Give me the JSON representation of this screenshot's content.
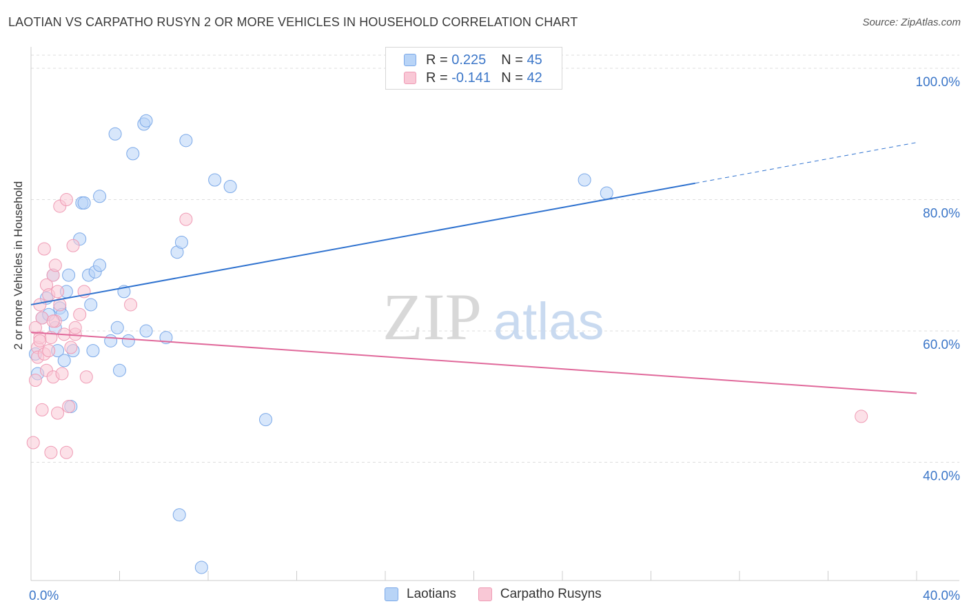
{
  "title": "LAOTIAN VS CARPATHO RUSYN 2 OR MORE VEHICLES IN HOUSEHOLD CORRELATION CHART",
  "source": "Source: ZipAtlas.com",
  "watermark": {
    "zip": "ZIP",
    "atlas": "atlas"
  },
  "legend": {
    "r_label": "R =",
    "n_label": "N =",
    "rows": [
      {
        "series": "Laotians",
        "r": "0.225",
        "n": "45"
      },
      {
        "series": "Carpatho Rusyns",
        "r": "-0.141",
        "n": "42"
      }
    ]
  },
  "bottom_legend": [
    "Laotians",
    "Carpatho Rusyns"
  ],
  "colors": {
    "laotians_fill": "#b8d4f7",
    "laotians_stroke": "#7aa8e8",
    "laotians_line": "#2f72cf",
    "rusyn_fill": "#f9c8d6",
    "rusyn_stroke": "#ef9ab4",
    "rusyn_line": "#e0689a",
    "tick_label": "#3b76c8",
    "grid": "#dddddd"
  },
  "chart_data": {
    "type": "scatter",
    "title": "LAOTIAN VS CARPATHO RUSYN 2 OR MORE VEHICLES IN HOUSEHOLD CORRELATION CHART",
    "xlabel": "",
    "ylabel": "2 or more Vehicles in Household",
    "xlim": [
      0,
      40
    ],
    "ylim": [
      22,
      102
    ],
    "x_tick_labels": [
      {
        "value": 0,
        "label": "0.0%"
      },
      {
        "value": 40,
        "label": "40.0%"
      }
    ],
    "x_minor_ticks": [
      4,
      8,
      12,
      16,
      20,
      24,
      28,
      32,
      36,
      40
    ],
    "y_ticks": [
      {
        "value": 40,
        "label": "40.0%"
      },
      {
        "value": 60,
        "label": "60.0%"
      },
      {
        "value": 80,
        "label": "80.0%"
      },
      {
        "value": 100,
        "label": "100.0%"
      }
    ],
    "grid": true,
    "series": [
      {
        "name": "Laotians",
        "r": 0.225,
        "n": 45,
        "trend": {
          "x0": 0,
          "y0": 64.0,
          "x1": 30,
          "y1": 82.5,
          "dash_to_x": 40,
          "dash_to_y": 88.7
        },
        "points": [
          [
            0.3,
            53.5
          ],
          [
            0.5,
            62.0
          ],
          [
            0.7,
            65.0
          ],
          [
            0.8,
            62.5
          ],
          [
            1.0,
            68.5
          ],
          [
            1.1,
            60.5
          ],
          [
            1.2,
            57.0
          ],
          [
            1.3,
            63.5
          ],
          [
            1.4,
            62.5
          ],
          [
            1.5,
            55.5
          ],
          [
            1.6,
            66.0
          ],
          [
            1.7,
            68.5
          ],
          [
            1.8,
            48.5
          ],
          [
            1.9,
            57.0
          ],
          [
            2.2,
            74.0
          ],
          [
            2.3,
            79.5
          ],
          [
            2.4,
            79.5
          ],
          [
            2.6,
            68.5
          ],
          [
            2.7,
            64.0
          ],
          [
            2.8,
            57.0
          ],
          [
            2.9,
            69.0
          ],
          [
            3.1,
            70.0
          ],
          [
            3.1,
            80.5
          ],
          [
            3.6,
            58.5
          ],
          [
            3.8,
            90.0
          ],
          [
            3.9,
            60.5
          ],
          [
            4.0,
            54.0
          ],
          [
            4.2,
            66.0
          ],
          [
            4.4,
            58.5
          ],
          [
            4.6,
            87.0
          ],
          [
            5.1,
            91.5
          ],
          [
            5.2,
            92.0
          ],
          [
            5.2,
            60.0
          ],
          [
            6.1,
            59.0
          ],
          [
            6.6,
            72.0
          ],
          [
            6.7,
            32.0
          ],
          [
            6.8,
            73.5
          ],
          [
            7.0,
            89.0
          ],
          [
            7.7,
            24.0
          ],
          [
            8.3,
            83.0
          ],
          [
            9.0,
            82.0
          ],
          [
            10.6,
            46.5
          ],
          [
            25.0,
            83.0
          ],
          [
            26.0,
            81.0
          ],
          [
            0.2,
            56.5
          ]
        ]
      },
      {
        "name": "Carpatho Rusyns",
        "r": -0.141,
        "n": 42,
        "trend": {
          "x0": 0,
          "y0": 59.8,
          "x1": 40,
          "y1": 50.5
        },
        "points": [
          [
            0.1,
            43.0
          ],
          [
            0.2,
            52.5
          ],
          [
            0.3,
            57.5
          ],
          [
            0.3,
            56.0
          ],
          [
            0.4,
            59.0
          ],
          [
            0.4,
            64.0
          ],
          [
            0.5,
            48.0
          ],
          [
            0.5,
            62.0
          ],
          [
            0.6,
            56.5
          ],
          [
            0.6,
            72.5
          ],
          [
            0.7,
            67.0
          ],
          [
            0.7,
            54.0
          ],
          [
            0.8,
            65.5
          ],
          [
            0.8,
            57.0
          ],
          [
            0.9,
            41.5
          ],
          [
            0.9,
            59.0
          ],
          [
            1.0,
            68.5
          ],
          [
            1.0,
            53.0
          ],
          [
            1.1,
            61.5
          ],
          [
            1.1,
            70.0
          ],
          [
            1.2,
            66.0
          ],
          [
            1.2,
            47.5
          ],
          [
            1.3,
            79.0
          ],
          [
            1.3,
            64.0
          ],
          [
            1.4,
            53.5
          ],
          [
            1.5,
            59.5
          ],
          [
            1.6,
            80.0
          ],
          [
            1.6,
            41.5
          ],
          [
            1.7,
            48.5
          ],
          [
            1.8,
            57.5
          ],
          [
            1.9,
            73.0
          ],
          [
            2.0,
            59.5
          ],
          [
            2.0,
            60.5
          ],
          [
            2.2,
            62.5
          ],
          [
            2.4,
            66.0
          ],
          [
            2.5,
            53.0
          ],
          [
            4.5,
            64.0
          ],
          [
            7.0,
            77.0
          ],
          [
            37.5,
            47.0
          ],
          [
            0.2,
            60.5
          ],
          [
            0.4,
            58.5
          ],
          [
            1.0,
            61.5
          ]
        ]
      }
    ]
  }
}
